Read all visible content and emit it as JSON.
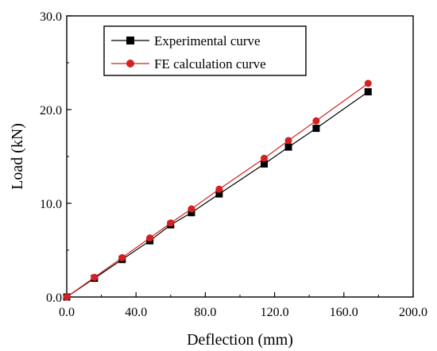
{
  "chart_data": {
    "type": "line",
    "xlabel": "Deflection (mm)",
    "ylabel": "Load (kN)",
    "xlim": [
      0,
      200
    ],
    "ylim": [
      0,
      30
    ],
    "x_ticks": [
      "0.0",
      "40.0",
      "80.0",
      "120.0",
      "160.0",
      "200.0"
    ],
    "y_ticks": [
      "0.0",
      "10.0",
      "20.0",
      "30.0"
    ],
    "grid": false,
    "legend_position": "top-left",
    "series": [
      {
        "name": "Experimental curve",
        "color": "#000000",
        "marker": "square",
        "points": [
          [
            0,
            0
          ],
          [
            16,
            2.0
          ],
          [
            32,
            4.0
          ],
          [
            48,
            6.0
          ],
          [
            60,
            7.7
          ],
          [
            72,
            9.0
          ],
          [
            88,
            11.0
          ],
          [
            114,
            14.2
          ],
          [
            128,
            16.0
          ],
          [
            144,
            18.0
          ],
          [
            174,
            21.9
          ]
        ]
      },
      {
        "name": "FE calculation curve",
        "color": "#d42020",
        "marker": "circle",
        "points": [
          [
            0,
            0
          ],
          [
            16,
            2.1
          ],
          [
            32,
            4.2
          ],
          [
            48,
            6.3
          ],
          [
            60,
            7.9
          ],
          [
            72,
            9.4
          ],
          [
            88,
            11.5
          ],
          [
            114,
            14.8
          ],
          [
            128,
            16.7
          ],
          [
            144,
            18.8
          ],
          [
            174,
            22.8
          ]
        ]
      }
    ]
  }
}
